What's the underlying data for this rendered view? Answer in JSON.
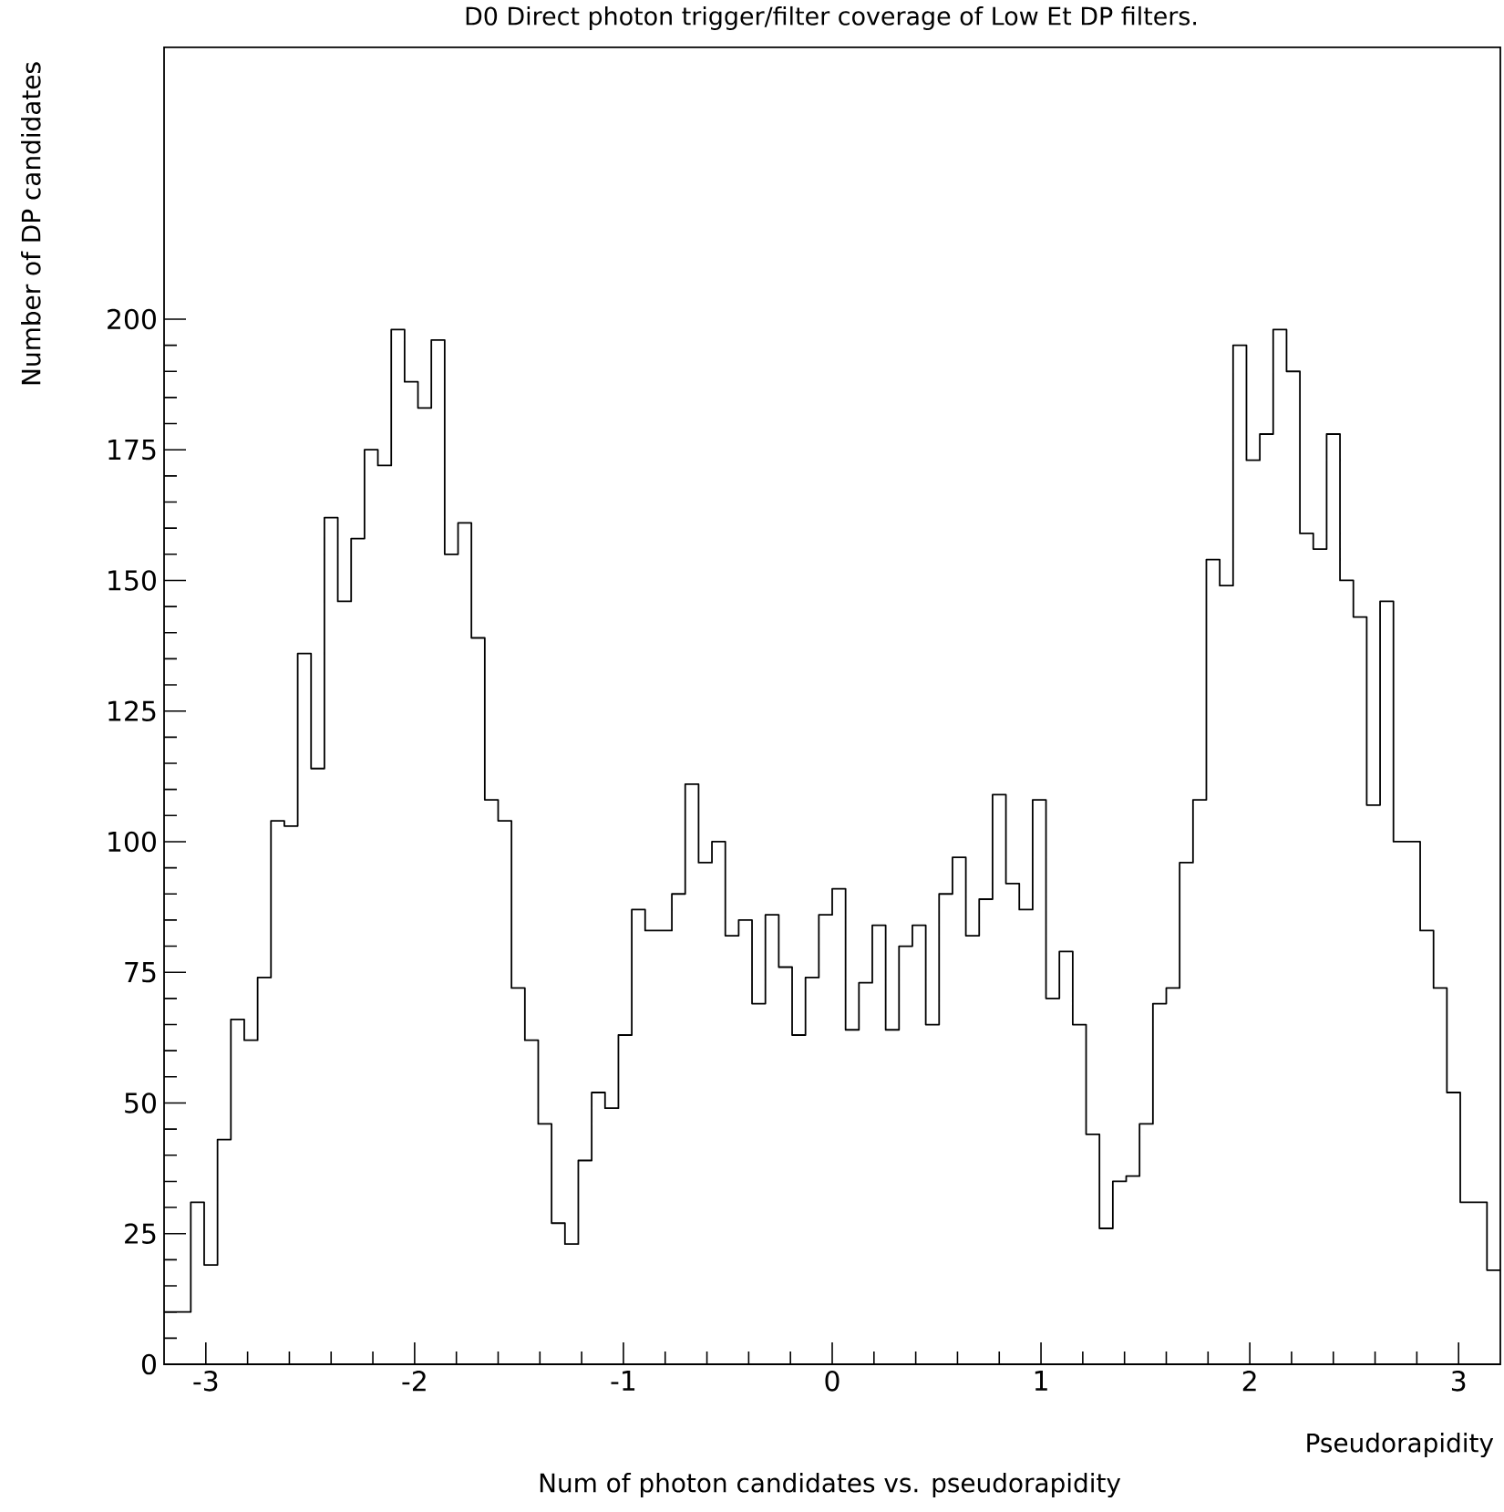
{
  "chart_data": {
    "type": "histogram",
    "title": "D0 Direct photon trigger/filter coverage of Low Et DP filters.",
    "xlabel": "Pseudorapidity",
    "ylabel": "Number of DP candidates",
    "annotations": [
      "Num of photon candidates vs. pseudorapidity"
    ],
    "color": "#000000",
    "bins": [
      -3.2,
      -3.136,
      -3.072,
      -3.008,
      -2.944,
      -2.88,
      -2.816,
      -2.752,
      -2.688,
      -2.624,
      -2.56,
      -2.496,
      -2.432,
      -2.368,
      -2.304,
      -2.24,
      -2.176,
      -2.112,
      -2.048,
      -1.984,
      -1.92,
      -1.856,
      -1.792,
      -1.728,
      -1.664,
      -1.6,
      -1.536,
      -1.472,
      -1.408,
      -1.344,
      -1.28,
      -1.216,
      -1.152,
      -1.088,
      -1.024,
      -0.96,
      -0.896,
      -0.832,
      -0.768,
      -0.704,
      -0.64,
      -0.576,
      -0.512,
      -0.448,
      -0.384,
      -0.32,
      -0.256,
      -0.192,
      -0.128,
      -0.064,
      0,
      0.064,
      0.128,
      0.192,
      0.256,
      0.32,
      0.384,
      0.448,
      0.512,
      0.576,
      0.64,
      0.704,
      0.768,
      0.832,
      0.896,
      0.96,
      1.024,
      1.088,
      1.152,
      1.216,
      1.28,
      1.344,
      1.408,
      1.472,
      1.536,
      1.6,
      1.664,
      1.728,
      1.792,
      1.856,
      1.92,
      1.984,
      2.048,
      2.112,
      2.176,
      2.24,
      2.304,
      2.368,
      2.432,
      2.496,
      2.56,
      2.624,
      2.688,
      2.752,
      2.816,
      2.88,
      2.944,
      3.008,
      3.072,
      3.136,
      3.2
    ],
    "values": [
      10,
      10,
      31,
      19,
      43,
      66,
      62,
      74,
      104,
      103,
      136,
      114,
      162,
      146,
      158,
      175,
      172,
      198,
      188,
      183,
      196,
      155,
      161,
      139,
      108,
      104,
      72,
      62,
      46,
      27,
      23,
      39,
      52,
      49,
      63,
      87,
      83,
      83,
      90,
      111,
      96,
      100,
      82,
      85,
      69,
      86,
      76,
      63,
      74,
      86,
      91,
      64,
      73,
      84,
      64,
      80,
      84,
      65,
      90,
      97,
      82,
      89,
      109,
      92,
      87,
      108,
      70,
      79,
      65,
      44,
      26,
      35,
      36,
      46,
      69,
      72,
      96,
      108,
      154,
      149,
      195,
      173,
      178,
      198,
      190,
      159,
      156,
      178,
      150,
      143,
      107,
      146,
      100,
      100,
      83,
      72,
      52,
      31,
      31,
      18
    ],
    "xlim": [
      -3.2,
      3.2
    ],
    "ylim": [
      0,
      252
    ],
    "xticks": [
      -3,
      -2,
      -1,
      0,
      1,
      2,
      3
    ],
    "yticks": [
      0,
      25,
      50,
      75,
      100,
      125,
      150,
      175,
      200
    ]
  }
}
